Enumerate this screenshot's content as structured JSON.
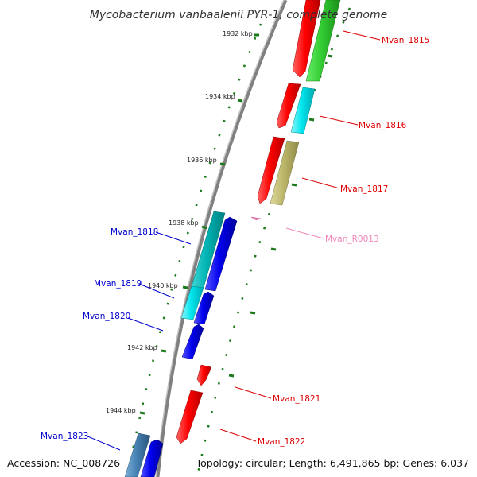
{
  "title": "Mycobacterium vanbaalenii PYR-1, complete genome",
  "footer": {
    "accession": "Accession: NC_008726",
    "topology": "Topology: circular; Length: 6,491,865 bp; Genes: 6,037"
  },
  "ticks": [
    "1932 kbp",
    "1934 kbp",
    "1936 kbp",
    "1938 kbp",
    "1940 kbp",
    "1942 kbp",
    "1944 kbp"
  ],
  "genes": [
    {
      "label": "Mvan_1815",
      "color": "#dd0000"
    },
    {
      "label": "Mvan_1816",
      "color": "#dd0000"
    },
    {
      "label": "Mvan_1817",
      "color": "#dd0000"
    },
    {
      "label": "Mvan_R0013",
      "color": "#ee88bb"
    },
    {
      "label": "Mvan_1818",
      "color": "#0000cc"
    },
    {
      "label": "Mvan_1819",
      "color": "#0000cc"
    },
    {
      "label": "Mvan_1820",
      "color": "#0000cc"
    },
    {
      "label": "Mvan_1821",
      "color": "#dd0000"
    },
    {
      "label": "Mvan_1822",
      "color": "#dd0000"
    },
    {
      "label": "Mvan_1823",
      "color": "#0000cc"
    }
  ],
  "colors": {
    "forward_strand": "#ff0000",
    "reverse_strand": "#0000ee",
    "cog_green": "#33cc33",
    "cog_cyan": "#00e5ee",
    "cog_teal": "#00b8b8",
    "cog_khaki": "#bdb76b",
    "cog_steelblue": "#4682b4",
    "backbone": "#808080",
    "tick_mark": "#1a7a1a"
  }
}
